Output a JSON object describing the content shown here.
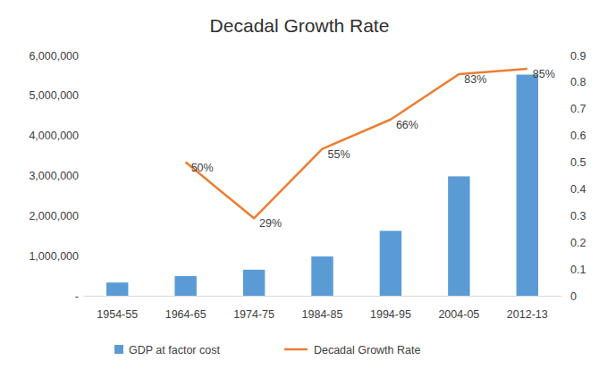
{
  "chart_data": {
    "type": "bar",
    "title": "Decadal Growth Rate",
    "categories": [
      "1954-55",
      "1964-65",
      "1974-75",
      "1984-85",
      "1994-95",
      "2004-05",
      "2012-13"
    ],
    "series": [
      {
        "name": "GDP at factor cost",
        "type": "bar",
        "color": "#5b9bd5",
        "values": [
          330000,
          490000,
          650000,
          980000,
          1620000,
          2980000,
          5520000
        ]
      },
      {
        "name": "Decadal Growth Rate",
        "type": "line",
        "axis": "y2",
        "color": "#ed7d31",
        "data_labels": true,
        "values": [
          null,
          0.5,
          0.29,
          0.55,
          0.66,
          0.83,
          0.85
        ],
        "value_labels": [
          null,
          "50%",
          "29%",
          "55%",
          "66%",
          "83%",
          "85%"
        ]
      }
    ],
    "ylim": [
      0,
      6000000
    ],
    "yticks": [
      {
        "value": 0,
        "label": "-"
      },
      {
        "value": 1000000,
        "label": "1,000,000"
      },
      {
        "value": 2000000,
        "label": "2,000,000"
      },
      {
        "value": 3000000,
        "label": "3,000,000"
      },
      {
        "value": 4000000,
        "label": "4,000,000"
      },
      {
        "value": 5000000,
        "label": "5,000,000"
      },
      {
        "value": 6000000,
        "label": "6,000,000"
      }
    ],
    "y2lim": [
      0,
      0.9
    ],
    "y2ticks": [
      0,
      0.1,
      0.2,
      0.3,
      0.4,
      0.5,
      0.6,
      0.7,
      0.8,
      0.9
    ],
    "grid": false,
    "legend": "bottom"
  }
}
